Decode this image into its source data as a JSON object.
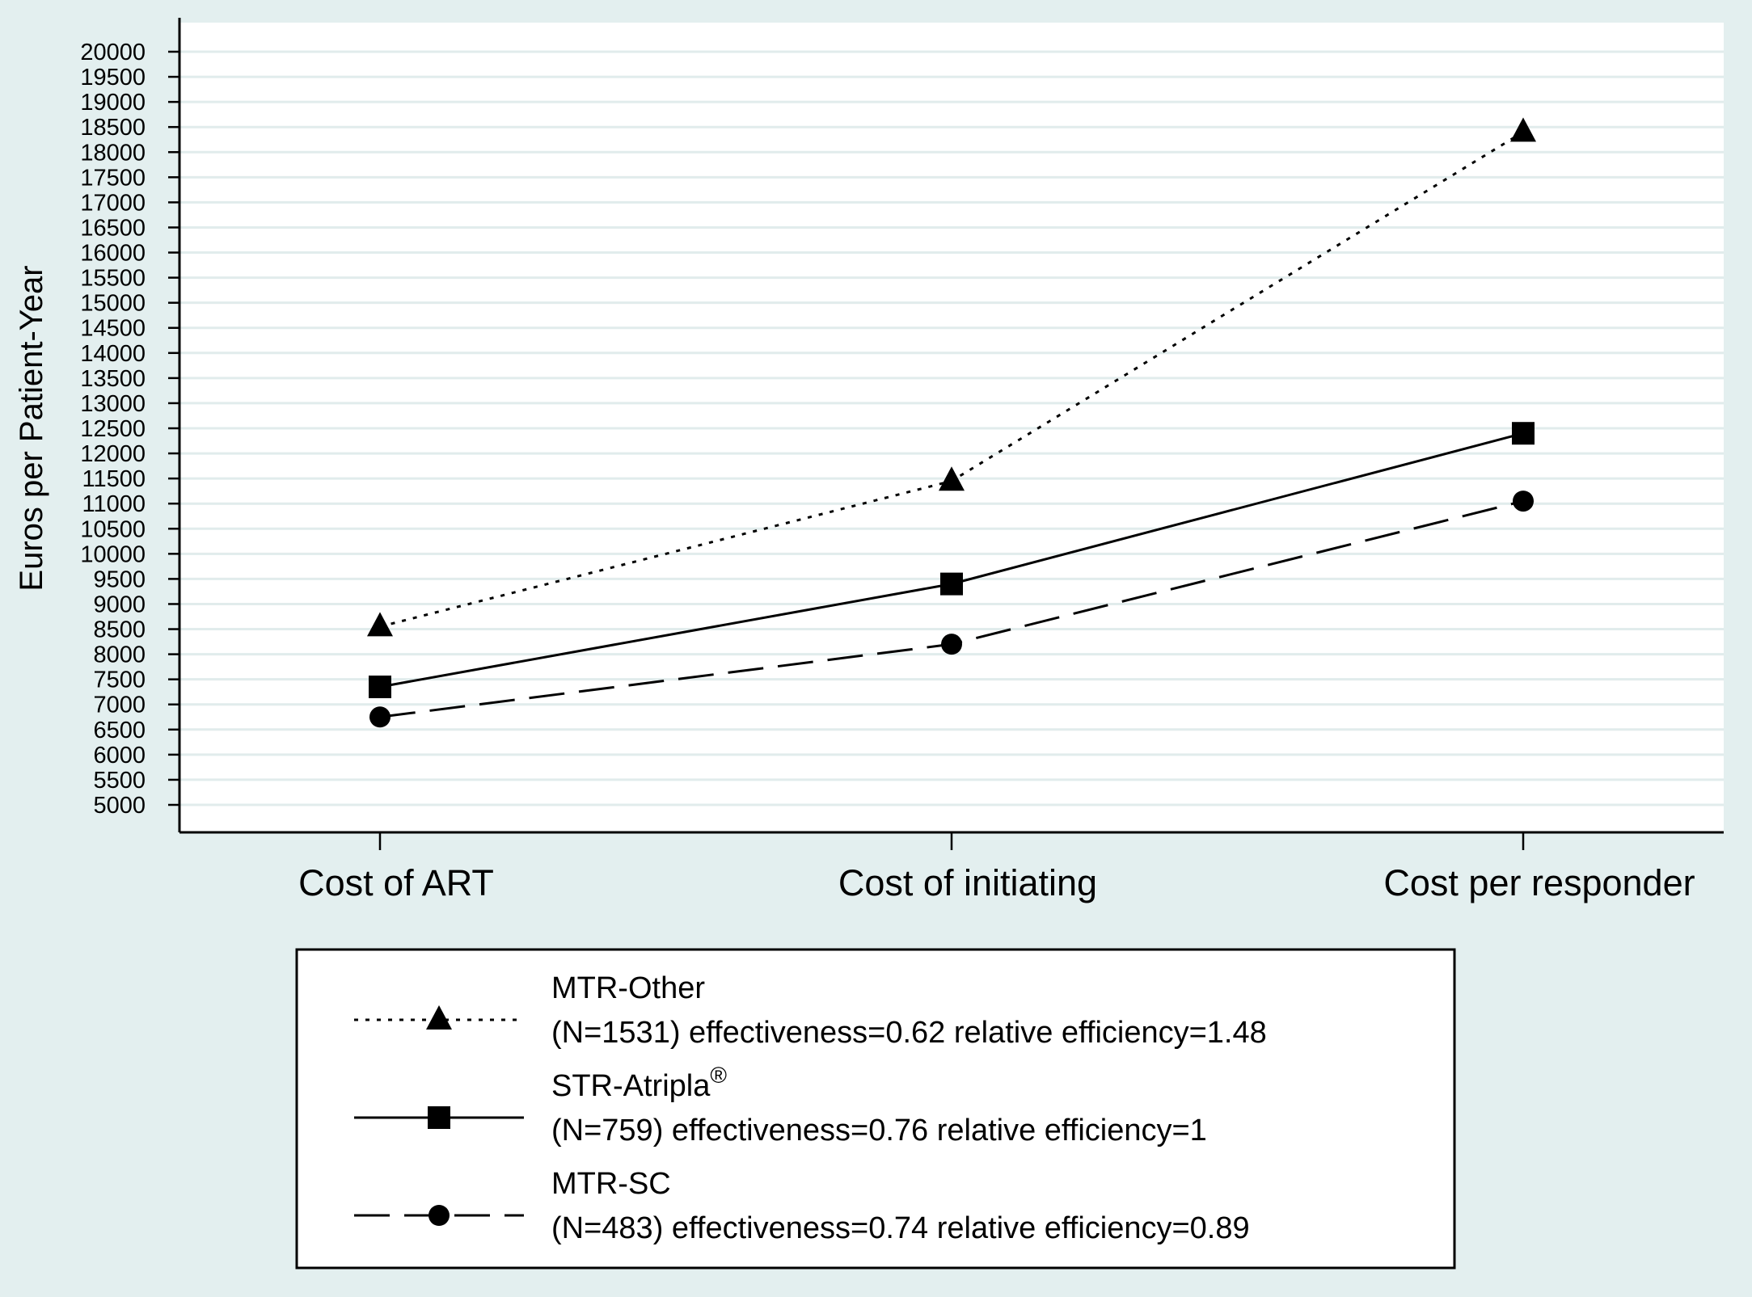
{
  "chart_data": {
    "type": "line",
    "title": "",
    "xlabel": "",
    "ylabel": "Euros per Patient-Year",
    "categories": [
      "Cost of ART",
      "Cost of initiating",
      "Cost per responder"
    ],
    "ylim": [
      5000,
      20000
    ],
    "yticks": [
      5000,
      5500,
      6000,
      6500,
      7000,
      7500,
      8000,
      8500,
      9000,
      9500,
      10000,
      10500,
      11000,
      11500,
      12000,
      12500,
      13000,
      13500,
      14000,
      14500,
      15000,
      15500,
      16000,
      16500,
      17000,
      17500,
      18000,
      18500,
      19000,
      19500,
      20000
    ],
    "grid": true,
    "legend_position": "bottom",
    "series": [
      {
        "name": "MTR-Other",
        "legend_detail": "(N=1531) effectiveness=0.62 relative efficiency=1.48",
        "marker": "triangle",
        "line_style": "dotted",
        "values": [
          8550,
          11450,
          18400
        ]
      },
      {
        "name": "STR-Atripla",
        "name_superscript": "®",
        "legend_detail": "(N=759) effectiveness=0.76 relative efficiency=1",
        "marker": "square",
        "line_style": "solid",
        "values": [
          7350,
          9400,
          12400
        ]
      },
      {
        "name": "MTR-SC",
        "legend_detail": "(N=483) effectiveness=0.74 relative efficiency=0.89",
        "marker": "circle",
        "line_style": "dashed",
        "values": [
          6750,
          8200,
          11050
        ]
      }
    ]
  },
  "colors": {
    "page_background": "#e3efef",
    "plot_background": "#ffffff",
    "grid": "#e1ecec",
    "ink": "#000000"
  }
}
